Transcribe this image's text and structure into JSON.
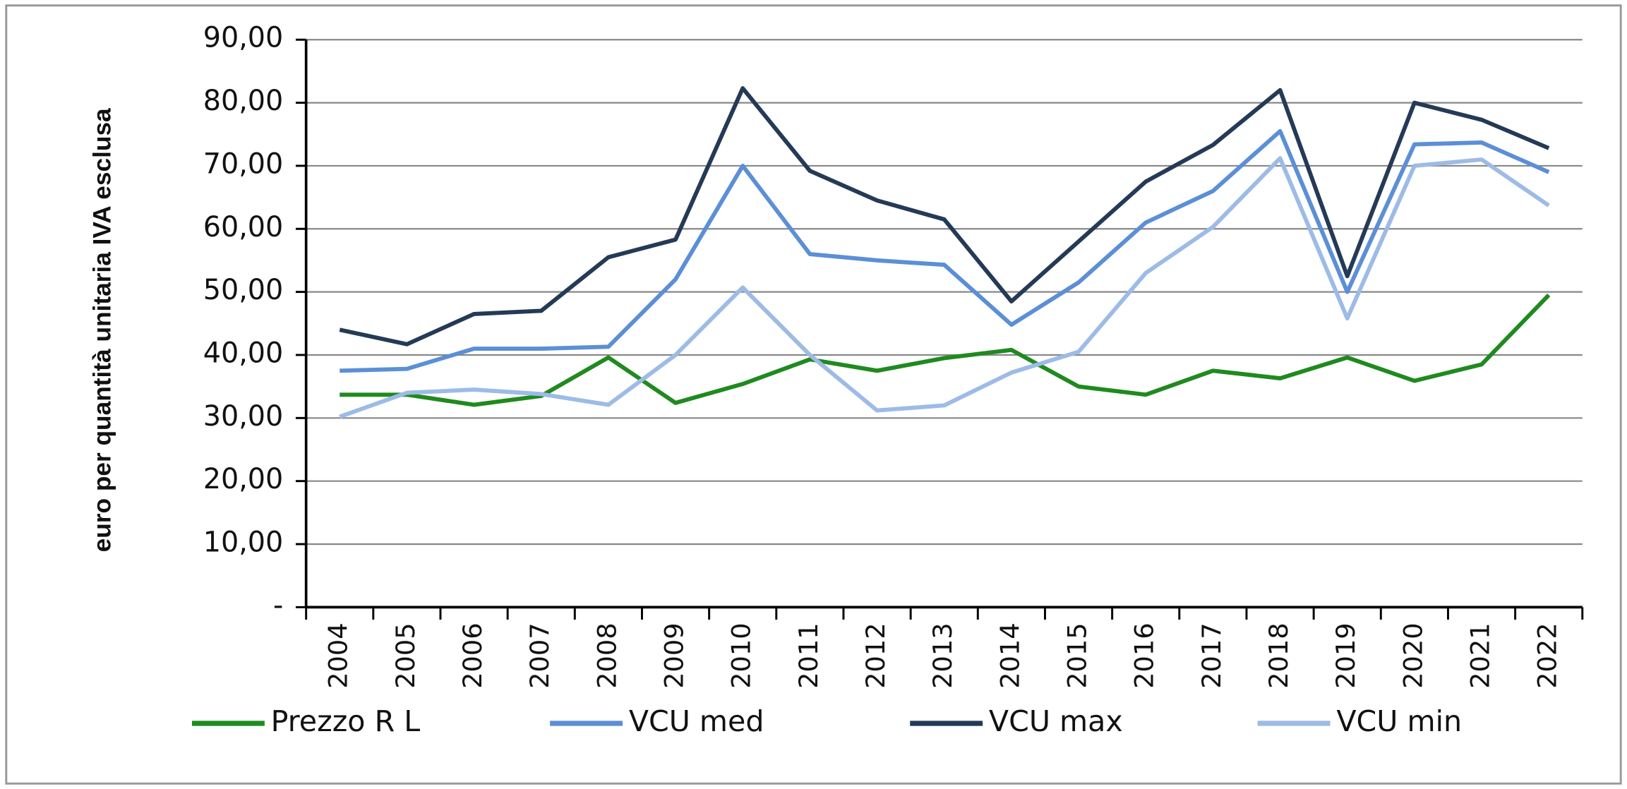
{
  "chart_data": {
    "type": "line",
    "y_label": "euro per quantità unitaria  IVA esclusa",
    "categories": [
      "2004",
      "2005",
      "2006",
      "2007",
      "2008",
      "2009",
      "2010",
      "2011",
      "2012",
      "2013",
      "2014",
      "2015",
      "2016",
      "2017",
      "2018",
      "2019",
      "2020",
      "2021",
      "2022"
    ],
    "series": [
      {
        "name": "Prezzo R L",
        "color": "#1f8a1f",
        "values": [
          33.7,
          33.7,
          32.1,
          33.5,
          39.6,
          32.4,
          35.4,
          39.3,
          37.5,
          39.5,
          40.8,
          35.0,
          33.7,
          37.5,
          36.3,
          39.6,
          35.9,
          38.5,
          49.5
        ]
      },
      {
        "name": "VCU med",
        "color": "#5b8fd6",
        "values": [
          37.5,
          37.8,
          41.0,
          41.0,
          41.3,
          52.0,
          70.0,
          56.0,
          55.0,
          54.3,
          44.8,
          51.5,
          61.0,
          66.0,
          75.5,
          50.0,
          73.4,
          73.7,
          69.0
        ]
      },
      {
        "name": "VCU max",
        "color": "#243a56",
        "values": [
          44.0,
          41.7,
          46.5,
          47.0,
          55.5,
          58.3,
          82.3,
          69.2,
          64.5,
          61.5,
          48.5,
          58.0,
          67.5,
          73.3,
          82.0,
          52.5,
          80.0,
          77.3,
          72.8
        ]
      },
      {
        "name": "VCU min",
        "color": "#9dbbe6",
        "values": [
          30.2,
          34.0,
          34.5,
          33.8,
          32.1,
          40.0,
          50.7,
          40.0,
          31.2,
          32.0,
          37.2,
          40.5,
          53.0,
          60.3,
          71.2,
          45.8,
          70.0,
          71.0,
          63.7
        ]
      }
    ],
    "ylim": [
      0,
      90
    ],
    "yticks": [
      {
        "value": 0,
        "label": "-"
      },
      {
        "value": 10,
        "label": "10,00"
      },
      {
        "value": 20,
        "label": "20,00"
      },
      {
        "value": 30,
        "label": "30,00"
      },
      {
        "value": 40,
        "label": "40,00"
      },
      {
        "value": 50,
        "label": "50,00"
      },
      {
        "value": 60,
        "label": "60,00"
      },
      {
        "value": 70,
        "label": "70,00"
      },
      {
        "value": 80,
        "label": "80,00"
      },
      {
        "value": 90,
        "label": "90,00"
      }
    ],
    "grid": true,
    "legend": "bottom"
  }
}
